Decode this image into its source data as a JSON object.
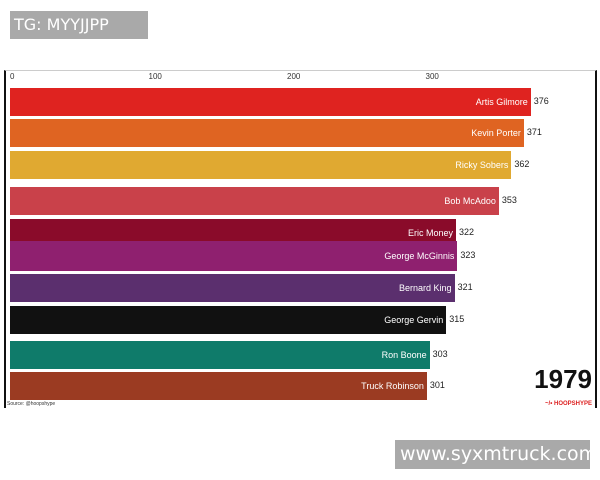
{
  "watermarks": {
    "top_left": "TG: MYYJJPP",
    "bottom_right": "www.syxmtruck.com"
  },
  "chart_data": {
    "type": "bar",
    "orientation": "horizontal",
    "x_ticks": [
      "0",
      "100",
      "200",
      "300"
    ],
    "xlim": [
      0,
      420
    ],
    "grid": false,
    "year": "1979",
    "source": "Source: @hoopshype",
    "brand": "~/• HOOPSHYPE",
    "categories": [
      "Artis Gilmore",
      "Kevin Porter",
      "Ricky Sobers",
      "Bob McAdoo",
      "Eric Money",
      "George McGinnis",
      "Bernard King",
      "George Gervin",
      "Ron Boone",
      "Truck Robinson"
    ],
    "values": [
      376,
      371,
      362,
      353,
      322,
      323,
      321,
      315,
      303,
      301
    ],
    "colors": [
      "#df2320",
      "#df6422",
      "#e0a931",
      "#c9414a",
      "#8a0b2a",
      "#8f206f",
      "#5b2f6e",
      "#111111",
      "#0f7b6a",
      "#9b3b22"
    ]
  }
}
